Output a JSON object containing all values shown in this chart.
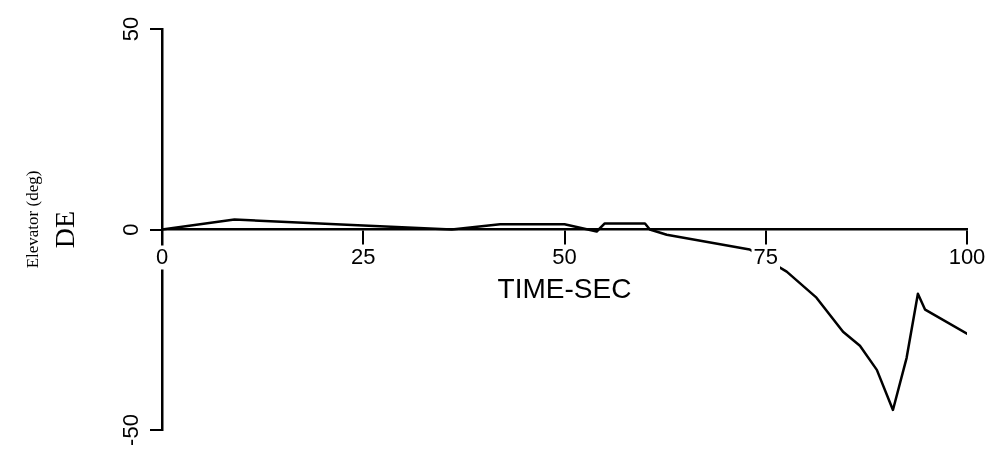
{
  "chart_data": {
    "type": "line",
    "xlabel": "TIME-SEC",
    "ylabel": "DE",
    "annotations": [
      "Elevator (deg)"
    ],
    "x": [
      0,
      9,
      25,
      36,
      42,
      50,
      54,
      55,
      60,
      60.6,
      62.7,
      73,
      77.6,
      81.3,
      84.6,
      86.7,
      88.8,
      90.8,
      92.5,
      93.9,
      94.8,
      100
    ],
    "series": [
      {
        "color": "#000000",
        "values": [
          0,
          2.5,
          1,
          0,
          1.3,
          1.3,
          -0.5,
          1.5,
          1.5,
          0,
          -1.3,
          -5,
          -10.5,
          -17,
          -25.5,
          -29,
          -35,
          -45,
          -32,
          -16,
          -20,
          -26
        ]
      }
    ],
    "xlim": [
      0,
      100
    ],
    "xticks": [
      0,
      25,
      50,
      75,
      100
    ],
    "ylim": [
      -50,
      50
    ],
    "yticks": [
      -50,
      0,
      50
    ],
    "grid": false,
    "legend": false,
    "marker": "none",
    "line_style": "solid"
  }
}
